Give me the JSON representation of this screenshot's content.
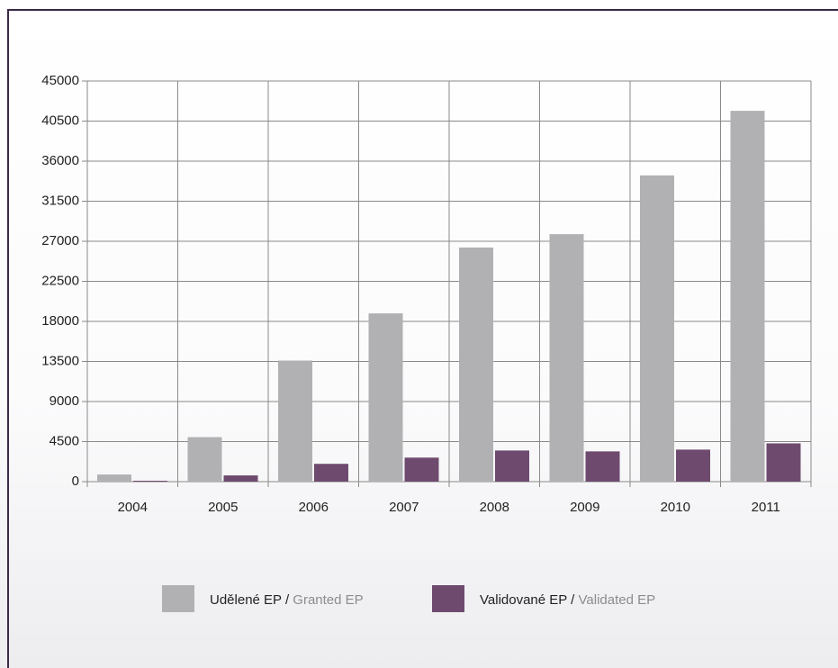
{
  "chart_data": {
    "type": "bar",
    "categories": [
      "2004",
      "2005",
      "2006",
      "2007",
      "2008",
      "2009",
      "2010",
      "2011"
    ],
    "series": [
      {
        "name": "Udělené EP / Granted EP",
        "color": "#b1b1b3",
        "values": [
          800,
          5000,
          13600,
          18900,
          26300,
          27800,
          34400,
          41650
        ]
      },
      {
        "name": "Validované EP / Validated EP",
        "color": "#6e4b6e",
        "values": [
          100,
          700,
          2000,
          2700,
          3500,
          3400,
          3600,
          4300
        ]
      }
    ],
    "ylim": [
      0,
      45000
    ],
    "yticks": [
      0,
      4500,
      9000,
      13500,
      18000,
      22500,
      27000,
      31500,
      36000,
      40500,
      45000
    ],
    "grid": true,
    "legend": "bottom"
  }
}
